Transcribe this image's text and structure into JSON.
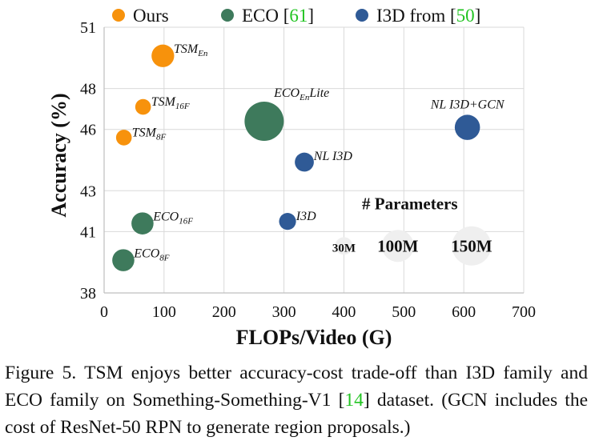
{
  "chart_data": {
    "type": "bubble",
    "xlabel": "FLOPs/Video (G)",
    "ylabel": "Accuracy (%)",
    "xlim": [
      0,
      700
    ],
    "ylim": [
      38,
      51
    ],
    "xticks": [
      0,
      100,
      200,
      300,
      400,
      500,
      600,
      700
    ],
    "yticks": [
      38,
      41,
      43,
      46,
      48,
      51
    ],
    "grid": true,
    "legend_position": "top",
    "legend": [
      {
        "label": "Ours",
        "color": "#f7920c"
      },
      {
        "label_prefix": "ECO [",
        "ref": "61",
        "label_suffix": "]",
        "color": "#3e7a5c"
      },
      {
        "label_prefix": "I3D from [",
        "ref": "50",
        "label_suffix": "]",
        "color": "#2f5a96"
      }
    ],
    "ref_color": "#22c422",
    "series": [
      {
        "name": "Ours",
        "color": "#f7920c",
        "points": [
          {
            "label": "TSM",
            "sub": "En",
            "x": 98,
            "y": 49.6,
            "params_m": 50
          },
          {
            "label": "TSM",
            "sub": "16F",
            "x": 65,
            "y": 47.1,
            "params_m": 24
          },
          {
            "label": "TSM",
            "sub": "8F",
            "x": 33,
            "y": 45.6,
            "params_m": 24
          }
        ]
      },
      {
        "name": "ECO",
        "color": "#3e7a5c",
        "points": [
          {
            "label": "ECO",
            "sub": "En",
            "suffix": "Lite",
            "x": 267,
            "y": 46.4,
            "params_m": 150
          },
          {
            "label": "ECO",
            "sub": "16F",
            "x": 64,
            "y": 41.4,
            "params_m": 47.5
          },
          {
            "label": "ECO",
            "sub": "8F",
            "x": 32,
            "y": 39.6,
            "params_m": 47.5
          }
        ]
      },
      {
        "name": "I3D",
        "color": "#2f5a96",
        "points": [
          {
            "label": "NL I3D+GCN",
            "x": 606,
            "y": 46.1,
            "params_m": 62.2
          },
          {
            "label": "NL I3D",
            "x": 334,
            "y": 44.4,
            "params_m": 35.3
          },
          {
            "label": "I3D",
            "x": 306,
            "y": 41.5,
            "params_m": 28
          }
        ]
      }
    ],
    "size_legend": {
      "title": "# Parameters",
      "color": "#efefef",
      "items": [
        {
          "label": "30M",
          "x": 400,
          "y": 40.3,
          "params_m": 30
        },
        {
          "label": "100M",
          "x": 490,
          "y": 40.3,
          "params_m": 100
        },
        {
          "label": "150M",
          "x": 613,
          "y": 40.3,
          "params_m": 150
        }
      ]
    }
  },
  "caption": {
    "prefix": "Figure 5. TSM enjoys better accuracy-cost trade-off than I3D family and ECO family on Something-Something-V1 [",
    "ref": "14",
    "suffix": "] dataset. (GCN includes the cost of ResNet-50 RPN to generate region proposals.)"
  }
}
